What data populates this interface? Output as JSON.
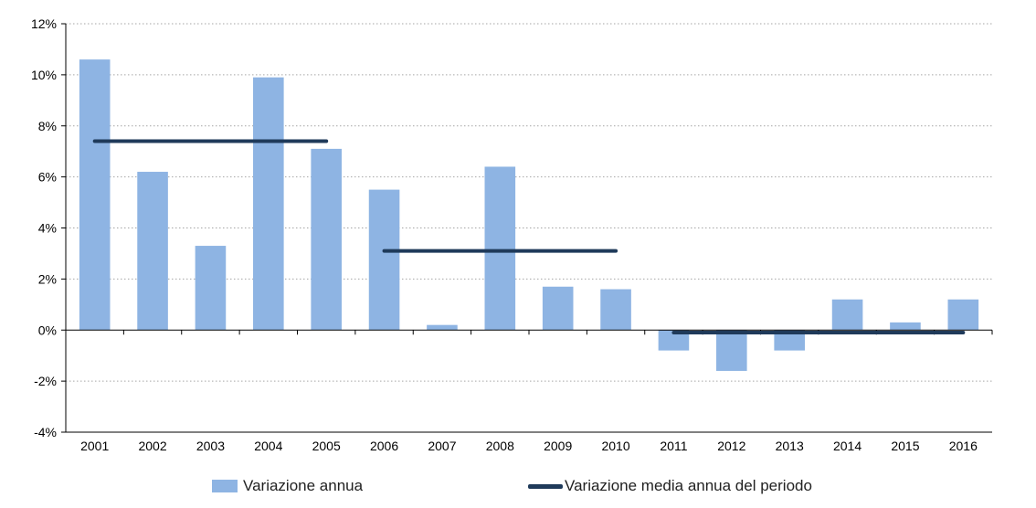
{
  "chart_data": {
    "type": "bar",
    "title": "",
    "xlabel": "",
    "ylabel": "",
    "categories": [
      "2001",
      "2002",
      "2003",
      "2004",
      "2005",
      "2006",
      "2007",
      "2008",
      "2009",
      "2010",
      "2011",
      "2012",
      "2013",
      "2014",
      "2015",
      "2016"
    ],
    "ylim": [
      -4,
      12
    ],
    "yticks": [
      -4,
      -2,
      0,
      2,
      4,
      6,
      8,
      10,
      12
    ],
    "ytick_labels": [
      "-4%",
      "-2%",
      "0%",
      "2%",
      "4%",
      "6%",
      "8%",
      "10%",
      "12%"
    ],
    "grid": "horizontal dotted",
    "series": [
      {
        "name": "Variazione annua",
        "kind": "bar",
        "color": "#8eb4e3",
        "values": [
          10.6,
          6.2,
          3.3,
          9.9,
          7.1,
          5.5,
          0.2,
          6.4,
          1.7,
          1.6,
          -0.8,
          -1.6,
          -0.8,
          1.2,
          0.3,
          1.2
        ]
      },
      {
        "name": "Variazione media annua del periodo",
        "kind": "step-line",
        "color": "#1f3a5a",
        "segments": [
          {
            "from": "2001",
            "to": "2005",
            "value": 7.4
          },
          {
            "from": "2006",
            "to": "2010",
            "value": 3.1
          },
          {
            "from": "2011",
            "to": "2016",
            "value": -0.1
          }
        ]
      }
    ],
    "legend_position": "bottom"
  }
}
